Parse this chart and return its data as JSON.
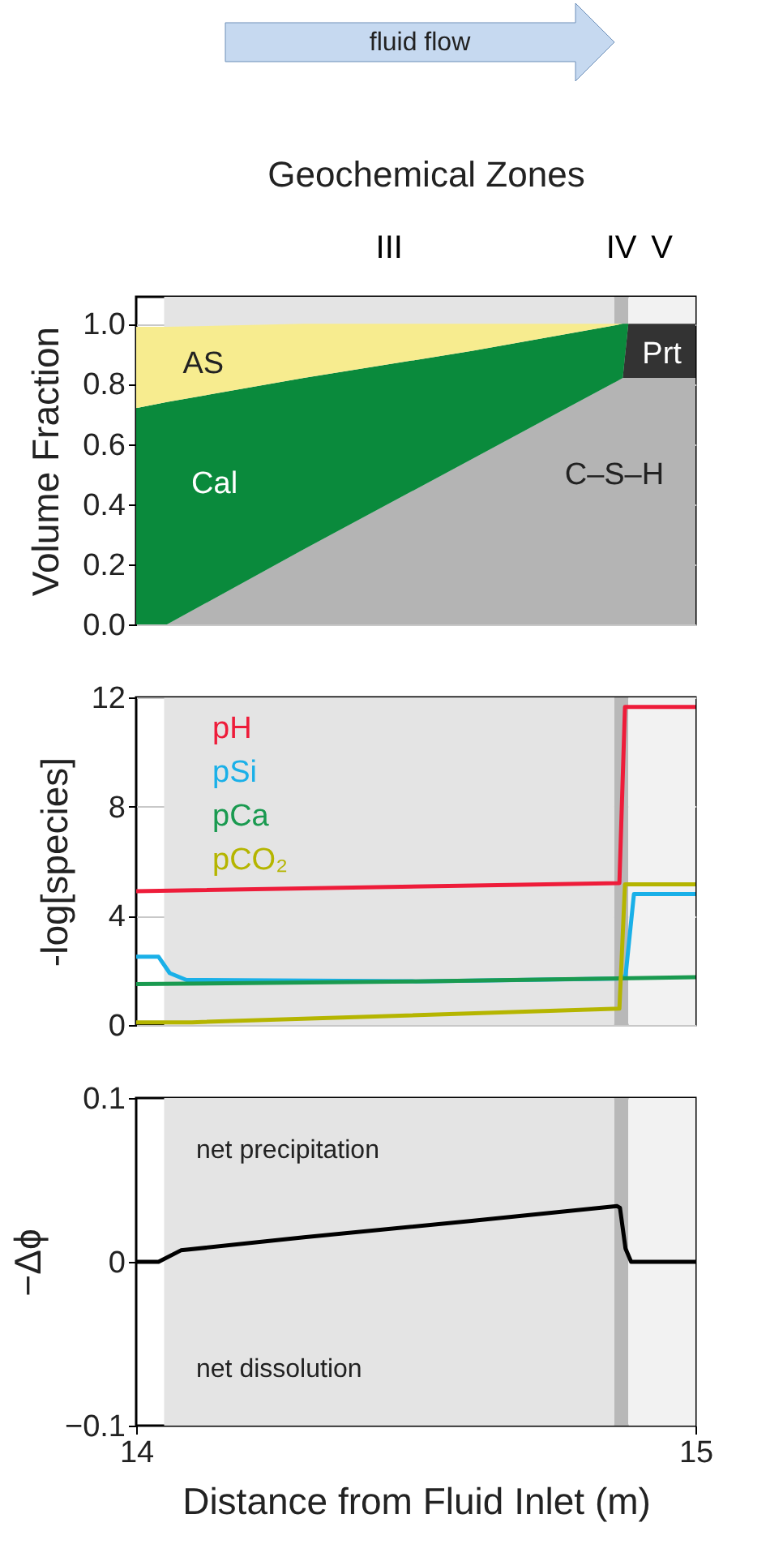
{
  "chart_data": [
    {
      "type": "area",
      "stacked": true,
      "ylabel": "Volume Fraction",
      "xlim": [
        14,
        15
      ],
      "ylim": [
        0,
        1.09
      ],
      "tick_labels": "y",
      "grid": "y",
      "yticks": [
        {
          "value": 0,
          "label": "0.0"
        },
        {
          "value": 0.2,
          "label": "0.2"
        },
        {
          "value": 0.4,
          "label": "0.4"
        },
        {
          "value": 0.6,
          "label": "0.6"
        },
        {
          "value": 0.8,
          "label": "0.8"
        },
        {
          "value": 1,
          "label": "1.0"
        }
      ],
      "x": [
        14,
        14.055,
        14.3,
        14.6,
        14.87,
        14.88,
        15
      ],
      "series": [
        {
          "name": "C–S–H",
          "color": "#b4b4b4",
          "values": [
            0,
            0,
            0.25,
            0.55,
            0.82,
            0.82,
            0.82
          ]
        },
        {
          "name": "Prt",
          "color": "#333333",
          "values": [
            null,
            null,
            null,
            null,
            0,
            0.18,
            0.18
          ]
        },
        {
          "name": "Cal",
          "color": "#0a8a3c",
          "values": [
            0.72,
            0.74,
            0.57,
            0.36,
            0.18,
            0,
            null
          ]
        },
        {
          "name": "AS",
          "color": "#f7ec8f",
          "values": [
            0.27,
            0.25,
            0.18,
            0.09,
            0,
            null,
            null
          ]
        }
      ],
      "bands": [
        {
          "axis": "x",
          "from": 14.05,
          "to": 14.855,
          "label": "III",
          "color": "#e4e4e4"
        },
        {
          "axis": "x",
          "from": 14.855,
          "to": 14.88,
          "label": "IV",
          "color": "#b8b8b8"
        },
        {
          "axis": "x",
          "from": 14.88,
          "to": 15,
          "label": "V",
          "color": "#f2f2f2"
        }
      ],
      "annotations": [
        "fluid flow",
        "Geochemical Zones"
      ]
    },
    {
      "type": "line",
      "ylabel": "-log[species]",
      "xlim": [
        14,
        15
      ],
      "ylim": [
        0,
        12
      ],
      "yticks": [
        0,
        4,
        8,
        12
      ],
      "tick_labels": "y",
      "grid": "y",
      "legend": "top left",
      "series": [
        {
          "name": "pH",
          "color": "#ee1c3a",
          "x": [
            14,
            14.864,
            14.874,
            15
          ],
          "values": [
            4.9,
            5.2,
            11.65,
            11.65
          ]
        },
        {
          "name": "pSi",
          "color": "#1ab0e8",
          "x": [
            14,
            14.04,
            14.06,
            14.09,
            14.5,
            14.86,
            14.875,
            14.89,
            15
          ],
          "values": [
            2.5,
            2.5,
            1.9,
            1.65,
            1.6,
            1.7,
            1.8,
            4.8,
            4.8
          ]
        },
        {
          "name": "pCa",
          "color": "#1a9a50",
          "x": [
            14,
            14.5,
            15
          ],
          "values": [
            1.5,
            1.6,
            1.75
          ]
        },
        {
          "name": "pCO₂",
          "color": "#b5b500",
          "x": [
            14,
            14.1,
            14.864,
            14.874,
            15
          ],
          "values": [
            0.1,
            0.1,
            0.6,
            5.15,
            5.15
          ]
        }
      ],
      "bands": [
        {
          "axis": "x",
          "from": 14.05,
          "to": 14.855,
          "color": "#e4e4e4"
        },
        {
          "axis": "x",
          "from": 14.855,
          "to": 14.88,
          "color": "#b8b8b8"
        },
        {
          "axis": "x",
          "from": 14.88,
          "to": 15,
          "color": "#f2f2f2"
        }
      ]
    },
    {
      "type": "line",
      "ylabel": "−Δϕ",
      "xlabel": "Distance from Fluid Inlet (m)",
      "xlim": [
        14,
        15
      ],
      "xticks": [
        14,
        15
      ],
      "ylim": [
        -0.1,
        0.1
      ],
      "yticks": [
        {
          "value": -0.1,
          "label": "−0.1"
        },
        0,
        0.1
      ],
      "series": [
        {
          "color": "#000000",
          "x": [
            14,
            14.04,
            14.08,
            14.3,
            14.6,
            14.86,
            14.865,
            14.875,
            14.885,
            15
          ],
          "values": [
            0,
            0,
            0.007,
            0.015,
            0.025,
            0.034,
            0.033,
            0.008,
            0,
            0
          ]
        }
      ],
      "bands": [
        {
          "axis": "x",
          "from": 14.05,
          "to": 14.855,
          "color": "#e4e4e4"
        },
        {
          "axis": "x",
          "from": 14.855,
          "to": 14.88,
          "color": "#b8b8b8"
        },
        {
          "axis": "x",
          "from": 14.88,
          "to": 15,
          "color": "#f2f2f2"
        }
      ],
      "annotations": [
        "net precipitation",
        "net dissolution"
      ]
    }
  ]
}
